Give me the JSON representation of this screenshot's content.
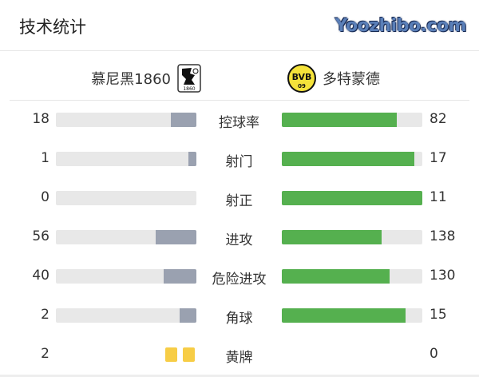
{
  "title": "技术统计",
  "home": {
    "name": "慕尼黑1860",
    "logo_text": "1860"
  },
  "away": {
    "name": "多特蒙德",
    "logo_text": "BVB 09"
  },
  "colors": {
    "home_bar": "#9aa1b0",
    "away_bar": "#55b04f",
    "track": "#e8e8e8",
    "yellow_card": "#f7cd46"
  },
  "stats": [
    {
      "label": "控球率",
      "home": "18",
      "away": "82",
      "home_frac": 0.18,
      "away_frac": 0.82
    },
    {
      "label": "射门",
      "home": "1",
      "away": "17",
      "home_frac": 0.056,
      "away_frac": 0.944
    },
    {
      "label": "射正",
      "home": "0",
      "away": "11",
      "home_frac": 0,
      "away_frac": 1
    },
    {
      "label": "进攻",
      "home": "56",
      "away": "138",
      "home_frac": 0.289,
      "away_frac": 0.711
    },
    {
      "label": "危险进攻",
      "home": "40",
      "away": "130",
      "home_frac": 0.235,
      "away_frac": 0.765
    },
    {
      "label": "角球",
      "home": "2",
      "away": "15",
      "home_frac": 0.118,
      "away_frac": 0.882
    }
  ],
  "yellow": {
    "label": "黄牌",
    "home": "2",
    "away": "0"
  },
  "watermark": "Yoozhibo.com"
}
